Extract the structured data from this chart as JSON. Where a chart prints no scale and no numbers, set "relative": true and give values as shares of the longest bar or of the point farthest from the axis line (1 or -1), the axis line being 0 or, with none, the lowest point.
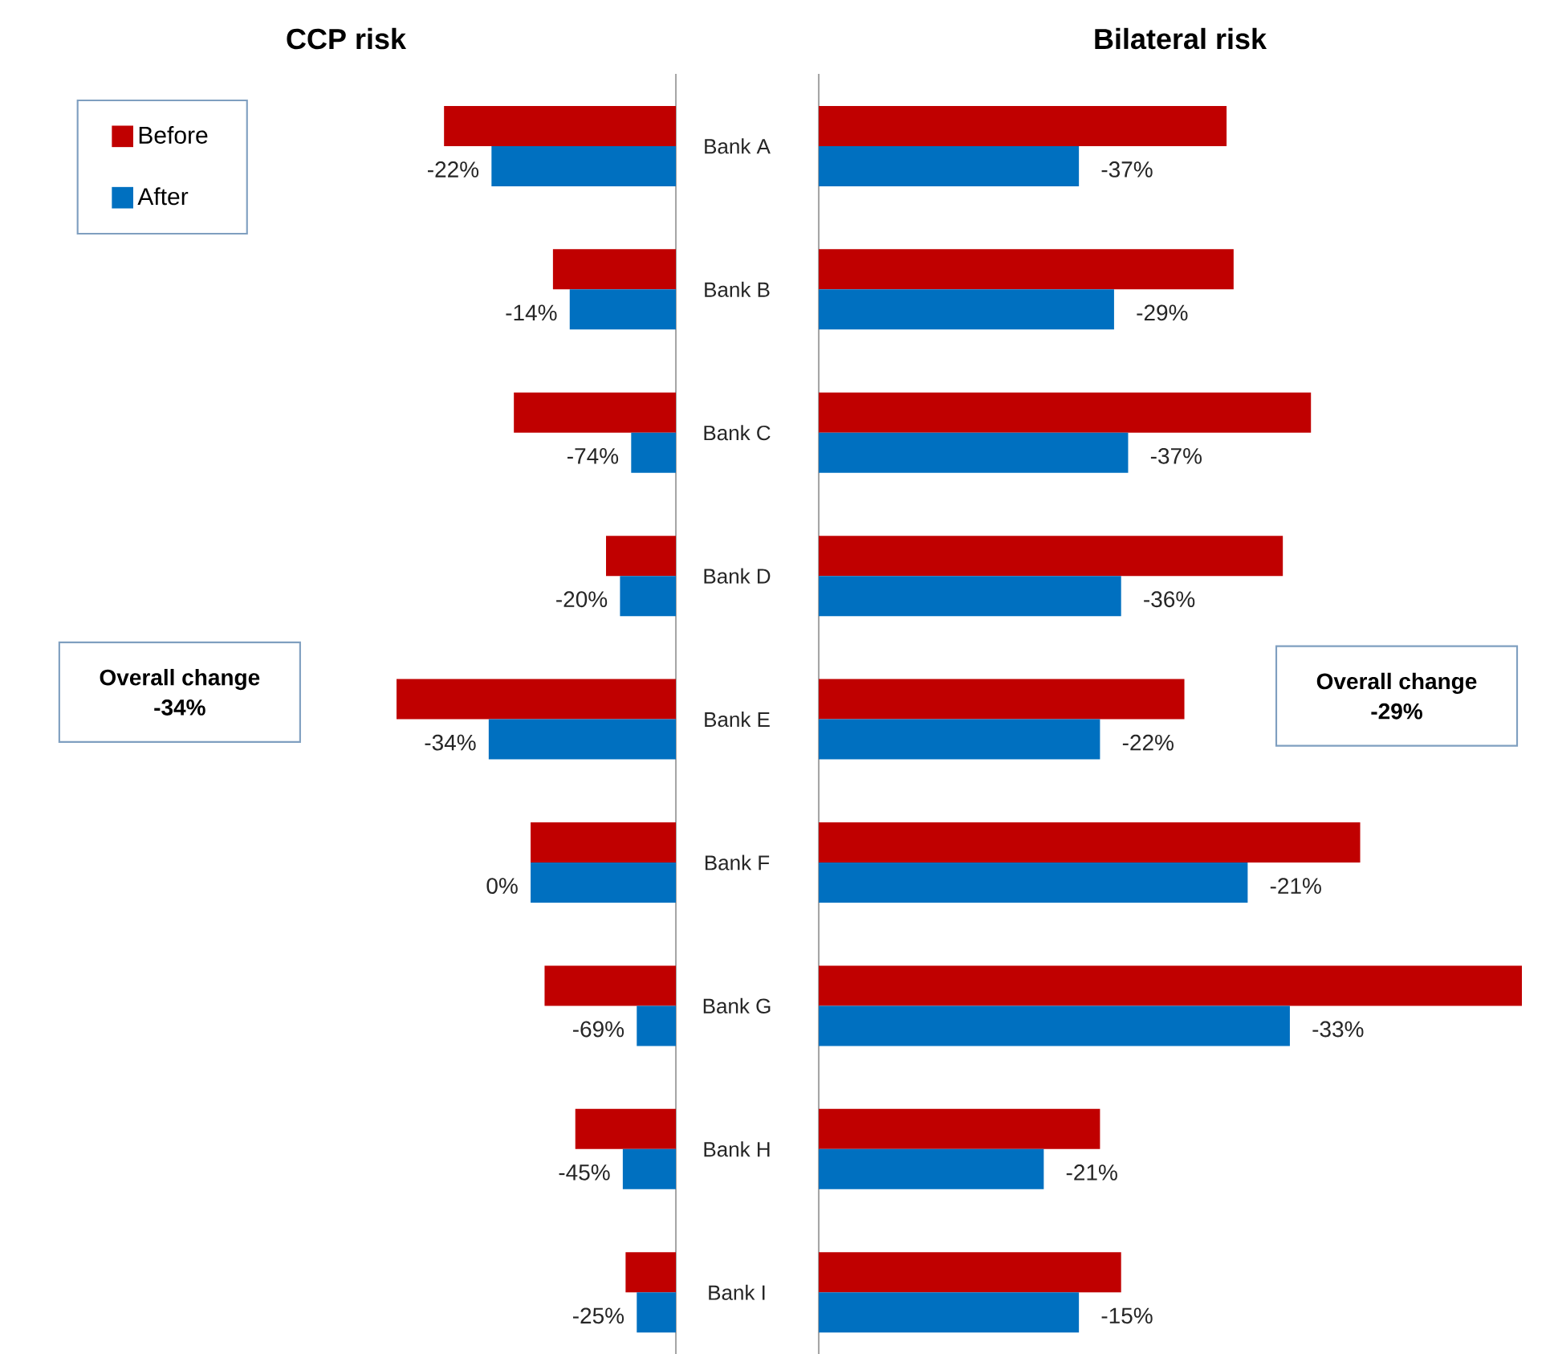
{
  "chart_data": [
    {
      "type": "bar",
      "orientation": "horizontal",
      "relative": true,
      "title": "CCP risk",
      "categories": [
        "Bank A",
        "Bank B",
        "Bank C",
        "Bank D",
        "Bank E",
        "Bank F",
        "Bank G",
        "Bank H",
        "Bank I"
      ],
      "series": [
        {
          "name": "Before",
          "color": "#c00000",
          "values": [
            -0.83,
            -0.44,
            -0.58,
            -0.25,
            -1,
            -0.52,
            -0.47,
            -0.36,
            -0.18
          ]
        },
        {
          "name": "After",
          "color": "#0070c0",
          "values": [
            -0.66,
            -0.38,
            -0.16,
            -0.2,
            -0.67,
            -0.52,
            -0.14,
            -0.19,
            -0.14
          ]
        }
      ],
      "legend": "top left",
      "tick_labels": "y",
      "annotations": [
        "Overall change",
        "-34%",
        "-22%",
        "-14%",
        "-74%",
        "-20%",
        "-34%",
        "0%",
        "-69%",
        "-45%",
        "-25%"
      ]
    },
    {
      "type": "bar",
      "orientation": "horizontal",
      "relative": true,
      "title": "Bilateral risk",
      "categories": [
        null,
        null,
        null,
        null,
        null,
        null,
        null,
        null,
        null
      ],
      "series": [
        {
          "color": "#c00000",
          "values": [
            0.58,
            0.59,
            0.7,
            0.66,
            0.52,
            0.77,
            1,
            0.4,
            0.43
          ]
        },
        {
          "color": "#0070c0",
          "values": [
            0.37,
            0.42,
            0.44,
            0.43,
            0.4,
            0.61,
            0.67,
            0.32,
            0.37
          ]
        }
      ],
      "tick_labels": false,
      "annotations": [
        "Overall change",
        "-29%",
        "-37%",
        "-29%",
        "-37%",
        "-36%",
        "-22%",
        "-21%",
        "-33%",
        "-21%",
        "-15%"
      ]
    }
  ]
}
